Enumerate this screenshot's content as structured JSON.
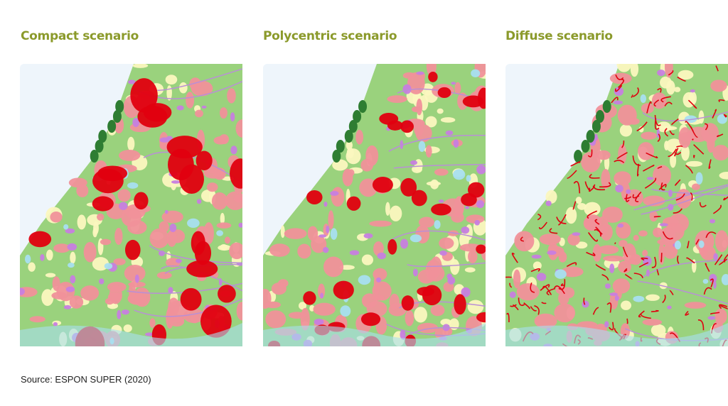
{
  "panels": [
    {
      "title": "Compact scenario",
      "scenario": "compact"
    },
    {
      "title": "Polycentric scenario",
      "scenario": "polycentric"
    },
    {
      "title": "Diffuse scenario",
      "scenario": "diffuse"
    }
  ],
  "source": "Source: ESPON SUPER (2020)",
  "colors": {
    "title": "#8b9a2b",
    "sea": "#eef5fb",
    "agriculture": "#9ad27d",
    "urban_existing": "#f0919a",
    "urban_new": "#e0000f",
    "industry": "#c77ee0",
    "forest": "#2e7d32",
    "water": "#a8dff0",
    "greenhouse": "#fbf7bf"
  }
}
